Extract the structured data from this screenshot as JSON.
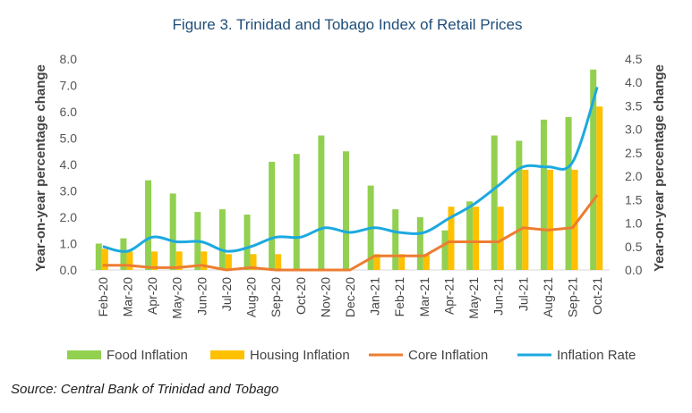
{
  "chart_data": {
    "type": "bar",
    "title": "Figure 3. Trinidad and Tobago Index of Retail Prices",
    "ylabel": "Year-on-year percentage change",
    "y2label": "Year-on-year percentage change",
    "ylim": [
      0,
      8
    ],
    "y2lim": [
      0,
      4.5
    ],
    "yticks": [
      "0.0",
      "1.0",
      "2.0",
      "3.0",
      "4.0",
      "5.0",
      "6.0",
      "7.0",
      "8.0"
    ],
    "y2ticks": [
      "0.0",
      "0.5",
      "1.0",
      "1.5",
      "2.0",
      "2.5",
      "3.0",
      "3.5",
      "4.0",
      "4.5"
    ],
    "categories": [
      "Feb-20",
      "Mar-20",
      "Apr-20",
      "May-20",
      "Jun-20",
      "Jul-20",
      "Aug-20",
      "Sep-20",
      "Oct-20",
      "Nov-20",
      "Dec-20",
      "Jan-21",
      "Feb-21",
      "Mar-21",
      "Apr-21",
      "May-21",
      "Jun-21",
      "Jul-21",
      "Aug-21",
      "Sep-21",
      "Oct-21"
    ],
    "series": [
      {
        "name": "Food Inflation",
        "type": "bar",
        "axis": "left",
        "color": "#92D050",
        "values": [
          1.0,
          1.2,
          3.4,
          2.9,
          2.2,
          2.3,
          2.1,
          4.1,
          4.4,
          5.1,
          4.5,
          3.2,
          2.3,
          2.0,
          1.5,
          2.6,
          5.1,
          4.9,
          5.7,
          5.8,
          7.6
        ]
      },
      {
        "name": "Housing Inflation",
        "type": "bar",
        "axis": "left",
        "color": "#FFC000",
        "values": [
          0.8,
          0.7,
          0.7,
          0.7,
          0.7,
          0.6,
          0.6,
          0.6,
          0.0,
          0.0,
          0.0,
          0.6,
          0.6,
          0.6,
          2.4,
          2.4,
          2.4,
          3.8,
          3.8,
          3.8,
          6.2
        ]
      },
      {
        "name": "Core Inflation",
        "type": "line",
        "axis": "right",
        "color": "#ED7D31",
        "values": [
          0.1,
          0.1,
          0.05,
          0.05,
          0.1,
          0.0,
          0.05,
          0.0,
          0.0,
          0.0,
          0.0,
          0.3,
          0.3,
          0.3,
          0.6,
          0.6,
          0.6,
          0.9,
          0.85,
          0.9,
          1.6
        ]
      },
      {
        "name": "Inflation Rate",
        "type": "line",
        "axis": "right",
        "color": "#1CA9E0",
        "values": [
          0.5,
          0.4,
          0.7,
          0.6,
          0.6,
          0.4,
          0.5,
          0.7,
          0.7,
          0.9,
          0.8,
          0.9,
          0.8,
          0.8,
          1.1,
          1.4,
          1.8,
          2.2,
          2.2,
          2.3,
          3.9
        ]
      }
    ],
    "legend": "bottom",
    "grid": false
  },
  "source": "Source: Central Bank of Trinidad and Tobago"
}
